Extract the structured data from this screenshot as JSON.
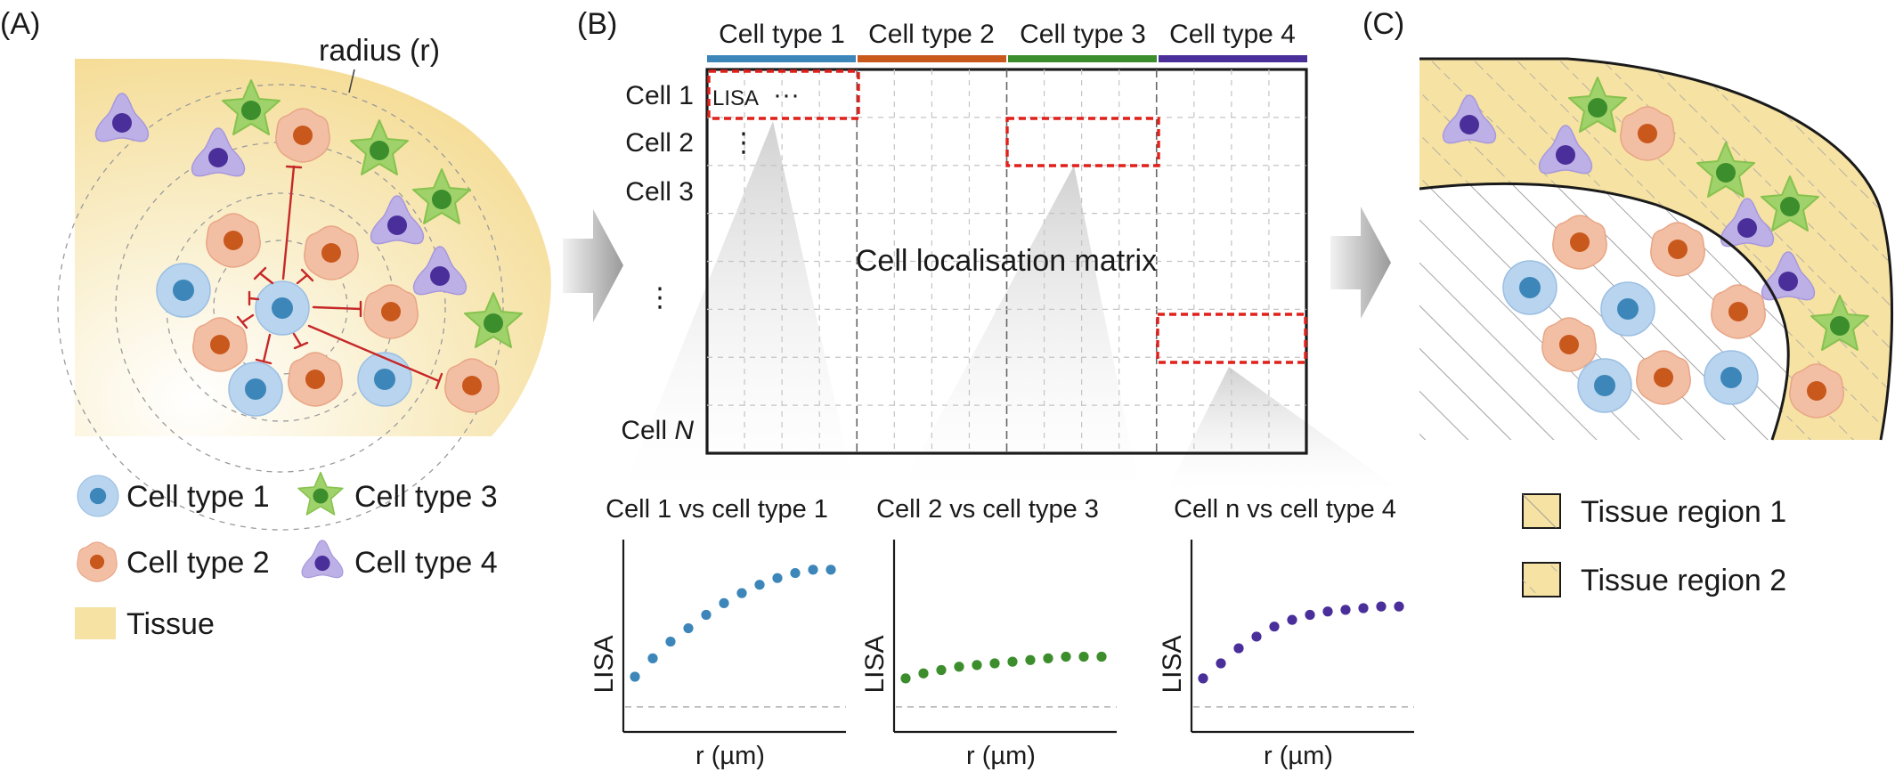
{
  "panels": {
    "a": {
      "letter": "(A)",
      "radius_label": "radius (r)"
    },
    "b": {
      "letter": "(B)",
      "matrix_title": "Cell localisation matrix",
      "lisa_tag": "LISA",
      "ellipsis_h": "···",
      "ellipsis_v": "⋮"
    },
    "c": {
      "letter": "(C)"
    }
  },
  "legend_a": {
    "cell_type_1": "Cell type 1",
    "cell_type_2": "Cell type 2",
    "cell_type_3": "Cell type 3",
    "cell_type_4": "Cell type 4",
    "tissue": "Tissue"
  },
  "matrix": {
    "columns": [
      "Cell type 1",
      "Cell type 2",
      "Cell type 3",
      "Cell type 4"
    ],
    "rows": [
      "Cell 1",
      "Cell 2",
      "Cell 3",
      "⋮",
      "Cell N"
    ]
  },
  "legend_c": {
    "region_1": "Tissue region 1",
    "region_2": "Tissue region 2"
  },
  "colors": {
    "type1": "#3d86b9",
    "type1_halo": "#b9d4ee",
    "type2": "#c9581c",
    "type2_halo": "#f2bfa5",
    "type3": "#3c8d2c",
    "type3_halo": "#9fd26a",
    "type4": "#4a2f9a",
    "type4_halo": "#bdb0e6",
    "tissue": "#f6e2a3",
    "highlight": "#e0201b",
    "inhibit": "#c62828"
  },
  "chart_data": [
    {
      "type": "scatter",
      "title": "Cell 1 vs cell type 1",
      "xlabel": "r (µm)",
      "ylabel": "LISA",
      "color": "#3d86b9",
      "x": [
        1,
        2,
        3,
        4,
        5,
        6,
        7,
        8,
        9,
        10,
        11,
        12
      ],
      "y": [
        0.18,
        0.29,
        0.39,
        0.47,
        0.55,
        0.62,
        0.68,
        0.73,
        0.77,
        0.8,
        0.82,
        0.82
      ],
      "ylim": [
        -0.15,
        1.0
      ],
      "baseline": 0
    },
    {
      "type": "scatter",
      "title": "Cell 2 vs cell type 3",
      "xlabel": "r (µm)",
      "ylabel": "LISA",
      "color": "#3c8d2c",
      "x": [
        1,
        2,
        3,
        4,
        5,
        6,
        7,
        8,
        9,
        10,
        11,
        12
      ],
      "y": [
        0.17,
        0.2,
        0.22,
        0.24,
        0.25,
        0.26,
        0.27,
        0.28,
        0.29,
        0.3,
        0.3,
        0.3
      ],
      "ylim": [
        -0.15,
        1.0
      ],
      "baseline": 0
    },
    {
      "type": "scatter",
      "title": "Cell n vs cell type 4",
      "xlabel": "r (µm)",
      "ylabel": "LISA",
      "color": "#4a2f9a",
      "x": [
        1,
        2,
        3,
        4,
        5,
        6,
        7,
        8,
        9,
        10,
        11,
        12
      ],
      "y": [
        0.17,
        0.26,
        0.35,
        0.42,
        0.48,
        0.52,
        0.55,
        0.57,
        0.58,
        0.59,
        0.6,
        0.6
      ],
      "ylim": [
        -0.15,
        1.0
      ],
      "baseline": 0
    }
  ]
}
